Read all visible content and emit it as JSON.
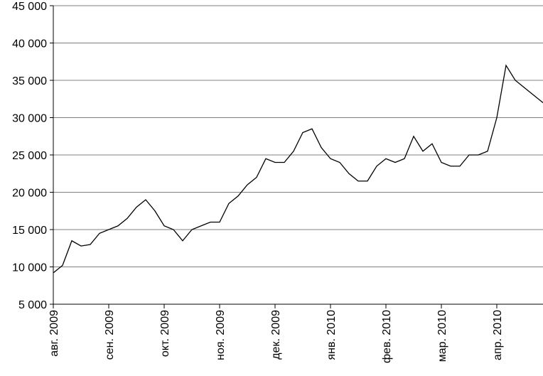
{
  "chart_data": {
    "type": "line",
    "categories": [
      "авг. 2009",
      null,
      null,
      null,
      null,
      null,
      "сен. 2009",
      null,
      null,
      null,
      null,
      null,
      "окт. 2009",
      null,
      null,
      null,
      null,
      null,
      "ноя. 2009",
      null,
      null,
      null,
      null,
      null,
      "дек. 2009",
      null,
      null,
      null,
      null,
      null,
      "янв. 2010",
      null,
      null,
      null,
      null,
      null,
      "фев. 2010",
      null,
      null,
      null,
      null,
      null,
      "мар. 2010",
      null,
      null,
      null,
      null,
      null,
      "апр. 2010",
      null,
      null,
      null,
      null,
      null
    ],
    "values": [
      9200,
      10200,
      13500,
      12800,
      13000,
      14500,
      15000,
      15500,
      16500,
      18000,
      19000,
      17500,
      15500,
      15000,
      13500,
      15000,
      15500,
      16000,
      16000,
      18500,
      19500,
      21000,
      22000,
      24500,
      24000,
      24000,
      25500,
      28000,
      28500,
      26000,
      24500,
      24000,
      22500,
      21500,
      21500,
      23500,
      24500,
      24000,
      24500,
      27500,
      25500,
      26500,
      24000,
      23500,
      23500,
      25000,
      25000,
      25500,
      30000,
      37000,
      35000,
      34000,
      33000,
      32000
    ],
    "color": "#000000",
    "ylim": [
      5000,
      45000
    ],
    "yticks": [
      {
        "value": 5000,
        "label": "5 000"
      },
      {
        "value": 10000,
        "label": "10 000"
      },
      {
        "value": 15000,
        "label": "15 000"
      },
      {
        "value": 20000,
        "label": "20 000"
      },
      {
        "value": 25000,
        "label": "25 000"
      },
      {
        "value": 30000,
        "label": "30 000"
      },
      {
        "value": 35000,
        "label": "35 000"
      },
      {
        "value": 40000,
        "label": "40 000"
      },
      {
        "value": 45000,
        "label": "45 000"
      }
    ],
    "grid": true
  }
}
